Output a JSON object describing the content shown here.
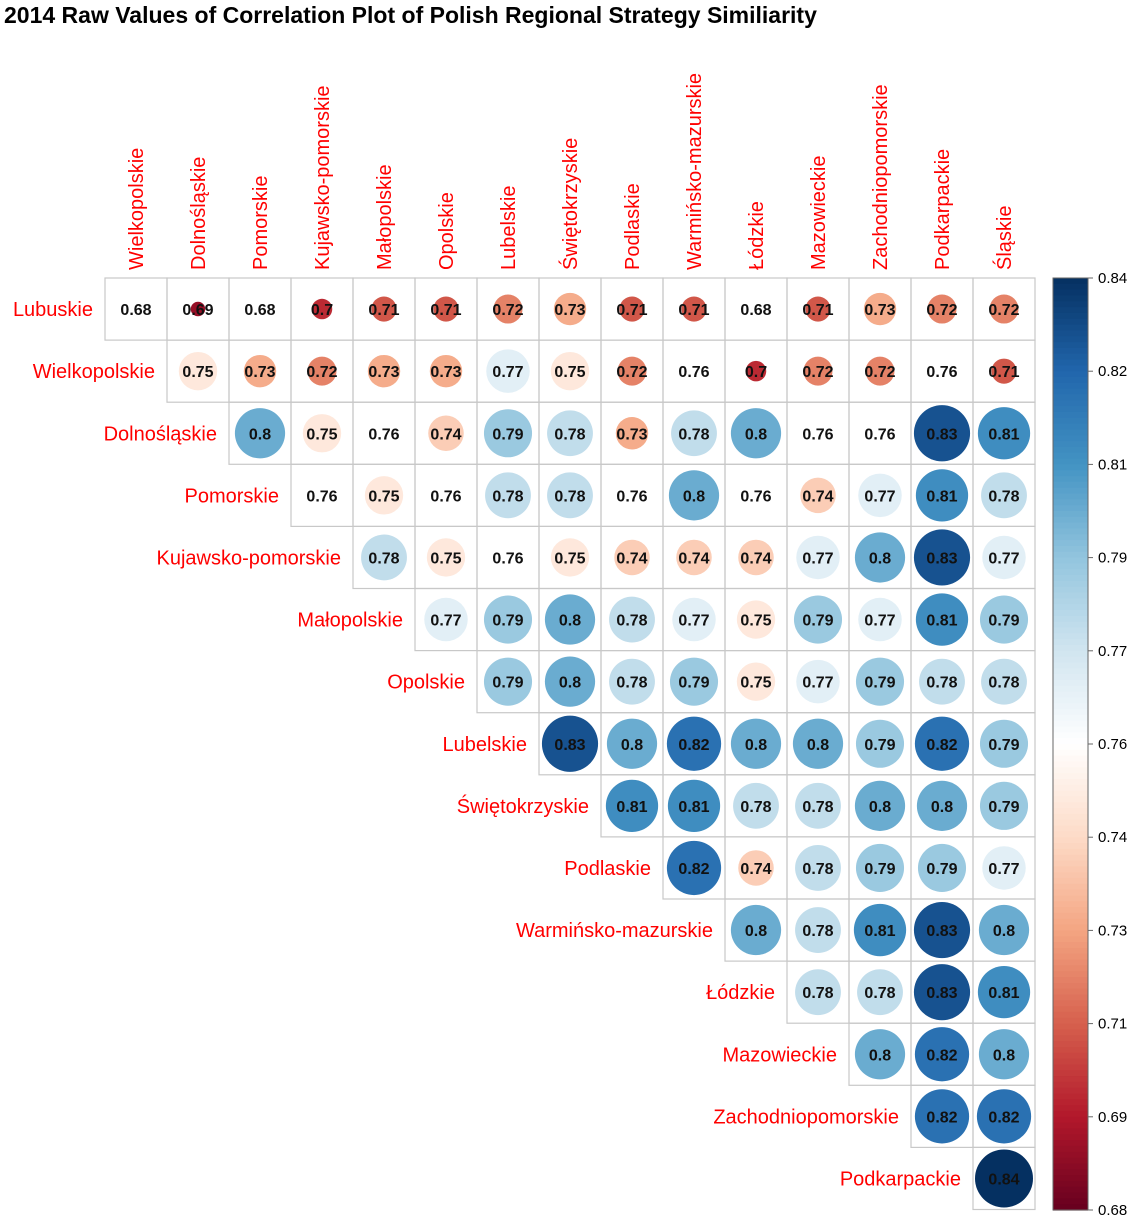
{
  "chart_data": {
    "type": "heatmap",
    "title": "2014 Raw Values of Correlation Plot of Polish Regional Strategy Similiarity",
    "row_labels": [
      "Lubuskie",
      "Wielkopolskie",
      "Dolnośląskie",
      "Pomorskie",
      "Kujawsko-pomorskie",
      "Małopolskie",
      "Opolskie",
      "Lubelskie",
      "Świętokrzyskie",
      "Podlaskie",
      "Warmińsko-mazurskie",
      "Łódzkie",
      "Mazowieckie",
      "Zachodniopomorskie",
      "Podkarpackie"
    ],
    "col_labels": [
      "Wielkopolskie",
      "Dolnośląskie",
      "Pomorskie",
      "Kujawsko-pomorskie",
      "Małopolskie",
      "Opolskie",
      "Lubelskie",
      "Świętokrzyskie",
      "Podlaskie",
      "Warmińsko-mazurskie",
      "Łódzkie",
      "Mazowieckie",
      "Zachodniopomorskie",
      "Podkarpackie",
      "Śląskie"
    ],
    "values": [
      [
        0.68,
        0.69,
        0.68,
        0.7,
        0.71,
        0.71,
        0.72,
        0.73,
        0.71,
        0.71,
        0.68,
        0.71,
        0.73,
        0.72,
        0.72
      ],
      [
        0.75,
        0.73,
        0.72,
        0.73,
        0.73,
        0.77,
        0.75,
        0.72,
        0.76,
        0.7,
        0.72,
        0.72,
        0.76,
        0.71
      ],
      [
        0.8,
        0.75,
        0.76,
        0.74,
        0.79,
        0.78,
        0.73,
        0.78,
        0.8,
        0.76,
        0.76,
        0.83,
        0.81
      ],
      [
        0.76,
        0.75,
        0.76,
        0.78,
        0.78,
        0.76,
        0.8,
        0.76,
        0.74,
        0.77,
        0.81,
        0.78
      ],
      [
        0.78,
        0.75,
        0.76,
        0.75,
        0.74,
        0.74,
        0.74,
        0.77,
        0.8,
        0.83,
        0.77
      ],
      [
        0.77,
        0.79,
        0.8,
        0.78,
        0.77,
        0.75,
        0.79,
        0.77,
        0.81,
        0.79
      ],
      [
        0.79,
        0.8,
        0.78,
        0.79,
        0.75,
        0.77,
        0.79,
        0.78,
        0.78
      ],
      [
        0.83,
        0.8,
        0.82,
        0.8,
        0.8,
        0.79,
        0.82,
        0.79
      ],
      [
        0.81,
        0.81,
        0.78,
        0.78,
        0.8,
        0.8,
        0.79
      ],
      [
        0.82,
        0.74,
        0.78,
        0.79,
        0.79,
        0.77
      ],
      [
        0.8,
        0.78,
        0.81,
        0.83,
        0.8
      ],
      [
        0.78,
        0.78,
        0.83,
        0.81
      ],
      [
        0.8,
        0.82,
        0.8
      ],
      [
        0.82,
        0.82
      ],
      [
        0.84
      ]
    ],
    "layout": "upper-triangle",
    "color_range": [
      0.68,
      0.84
    ],
    "colorbar_ticks": [
      "0.84",
      "0.82",
      "0.81",
      "0.79",
      "0.77",
      "0.76",
      "0.74",
      "0.73",
      "0.71",
      "0.69",
      "0.68"
    ],
    "colormap": [
      "#67001F",
      "#B2182B",
      "#D6604D",
      "#F4A582",
      "#FDDBC7",
      "#FFFFFF",
      "#D1E5F0",
      "#92C5DE",
      "#4393C3",
      "#2166AC",
      "#053061"
    ],
    "label_color": "#FF0000"
  }
}
